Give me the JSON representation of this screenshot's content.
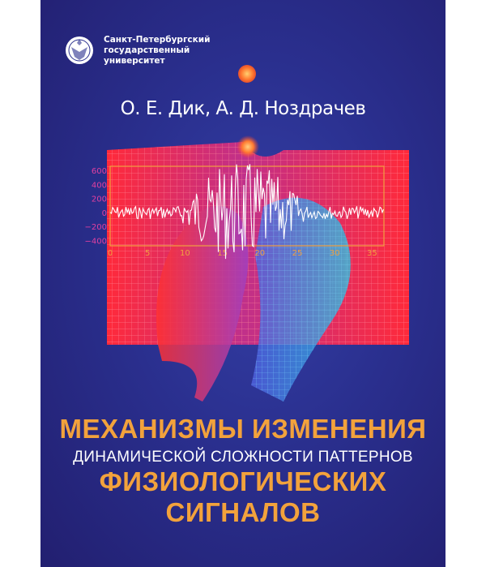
{
  "publisher": {
    "lines": [
      "Санкт-Петербургский",
      "государственный",
      "университет"
    ]
  },
  "authors": "О. Е. Дик,  А. Д. Ноздрачев",
  "title": {
    "line1": "МЕХАНИЗМЫ ИЗМЕНЕНИЯ",
    "line2": "ДИНАМИЧЕСКОЙ СЛОЖНОСТИ ПАТТЕРНОВ",
    "line3": "ФИЗИОЛОГИЧЕСКИХ СИГНАЛОВ"
  },
  "signal_plot": {
    "y_ticks": [
      "600",
      "400",
      "200",
      "0",
      "−200",
      "−400"
    ],
    "x_ticks": [
      "0",
      "5",
      "10",
      "15",
      "20",
      "25",
      "30",
      "35"
    ]
  },
  "colors": {
    "background": "#2a2f8e",
    "title_accent": "#f2a23c",
    "axis": "#f0a040",
    "tick_labels": "#e040a0"
  }
}
